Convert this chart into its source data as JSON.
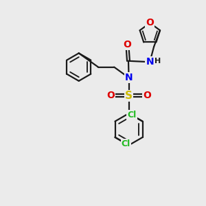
{
  "bg_color": "#ebebeb",
  "bond_color": "#1a1a1a",
  "bond_lw": 1.6,
  "atom_colors": {
    "O": "#dd0000",
    "N": "#0000ee",
    "S": "#ccbb00",
    "Cl": "#22bb22",
    "C": "#1a1a1a",
    "H": "#1a1a1a"
  },
  "fs": 9,
  "xlim": [
    0,
    10
  ],
  "ylim": [
    0,
    10
  ]
}
